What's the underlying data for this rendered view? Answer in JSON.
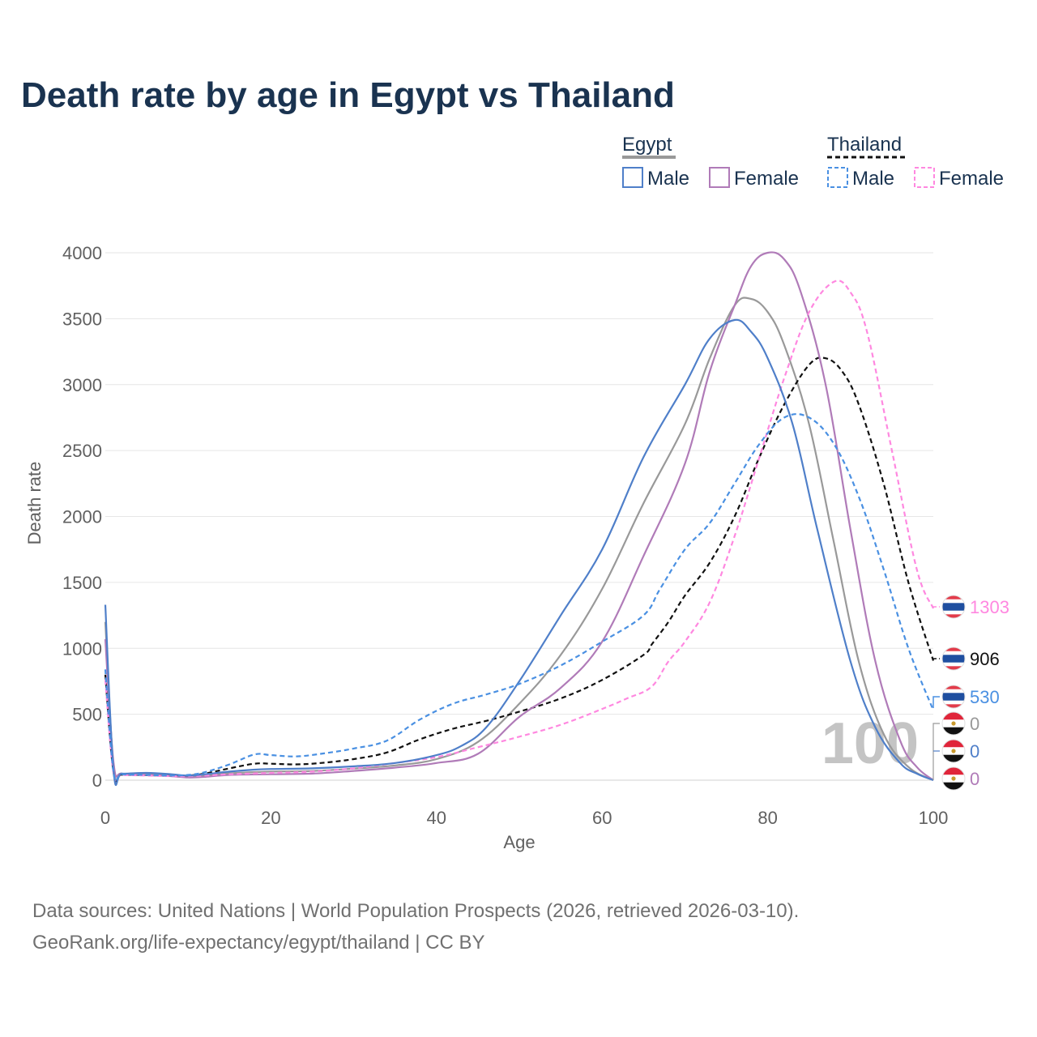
{
  "title": "Death rate by age in Egypt vs Thailand",
  "legend": {
    "groups": [
      {
        "label": "Egypt",
        "line_style": "solid",
        "color": "#999999",
        "items": [
          {
            "label": "Male",
            "color": "#4f7fc9"
          },
          {
            "label": "Female",
            "color": "#b07bb8"
          }
        ]
      },
      {
        "label": "Thailand",
        "line_style": "dashed",
        "color": "#111111",
        "items": [
          {
            "label": "Male",
            "color": "#4a90e2"
          },
          {
            "label": "Female",
            "color": "#ff88e0"
          }
        ]
      }
    ]
  },
  "source": {
    "line1": "Data sources: United Nations | World Population Prospects (2026, retrieved 2026-03-10).",
    "line2": "GeoRank.org/life-expectancy/egypt/thailand | CC BY"
  },
  "watermark": "100",
  "chart_data": {
    "type": "line",
    "title": "Death rate by age in Egypt vs Thailand",
    "xlabel": "Age",
    "ylabel": "Death rate",
    "xlim": [
      0,
      100
    ],
    "ylim": [
      0,
      4000
    ],
    "xticks": [
      0,
      20,
      40,
      60,
      80,
      100
    ],
    "yticks": [
      0,
      500,
      1000,
      1500,
      2000,
      2500,
      3000,
      3500,
      4000
    ],
    "grid": true,
    "series": [
      {
        "name": "Egypt Male",
        "country": "Egypt",
        "sex": "Male",
        "color": "#4f7fc9",
        "dash": "solid",
        "end_label": "0",
        "x": [
          0,
          1,
          2,
          5,
          8,
          10,
          12,
          15,
          18,
          20,
          25,
          30,
          35,
          40,
          43,
          46,
          50,
          55,
          60,
          65,
          70,
          73,
          76,
          78,
          80,
          83,
          86,
          90,
          93,
          96,
          98,
          100
        ],
        "y": [
          1330,
          70,
          50,
          55,
          45,
          35,
          45,
          65,
          80,
          85,
          90,
          105,
          130,
          190,
          260,
          400,
          750,
          1250,
          1750,
          2450,
          3000,
          3350,
          3490,
          3400,
          3200,
          2700,
          1900,
          900,
          400,
          130,
          50,
          0
        ]
      },
      {
        "name": "Egypt Female",
        "country": "Egypt",
        "sex": "Female",
        "color": "#b07bb8",
        "dash": "solid",
        "end_label": "0",
        "x": [
          0,
          1,
          2,
          5,
          8,
          10,
          12,
          15,
          20,
          25,
          30,
          35,
          40,
          45,
          50,
          55,
          60,
          65,
          70,
          73,
          76,
          78,
          80,
          82,
          84,
          87,
          90,
          93,
          96,
          98,
          100
        ],
        "y": [
          1070,
          130,
          50,
          40,
          30,
          20,
          25,
          40,
          45,
          50,
          70,
          95,
          130,
          200,
          480,
          700,
          1050,
          1700,
          2400,
          3100,
          3600,
          3900,
          4000,
          3950,
          3700,
          3000,
          1900,
          900,
          300,
          100,
          0
        ]
      },
      {
        "name": "Egypt Total",
        "country": "Egypt",
        "sex": "Total",
        "color": "#999999",
        "dash": "solid",
        "end_label": "0",
        "x": [
          0,
          1,
          2,
          5,
          8,
          10,
          12,
          15,
          20,
          25,
          30,
          35,
          40,
          45,
          50,
          55,
          60,
          65,
          70,
          73,
          76,
          78,
          80,
          82,
          85,
          88,
          91,
          94,
          97,
          100
        ],
        "y": [
          1200,
          100,
          50,
          48,
          38,
          28,
          35,
          52,
          65,
          70,
          88,
          112,
          160,
          290,
          580,
          950,
          1450,
          2100,
          2700,
          3200,
          3600,
          3650,
          3550,
          3300,
          2700,
          1800,
          900,
          350,
          100,
          0
        ]
      },
      {
        "name": "Thailand Male",
        "country": "Thailand",
        "sex": "Male",
        "color": "#4a90e2",
        "dash": "dashed",
        "end_label": "530",
        "x": [
          0,
          1,
          2,
          5,
          8,
          10,
          12,
          15,
          18,
          20,
          23,
          26,
          30,
          34,
          38,
          42,
          46,
          50,
          55,
          60,
          65,
          67,
          70,
          73,
          76,
          79,
          82,
          85,
          88,
          91,
          94,
          97,
          100
        ],
        "y": [
          840,
          60,
          45,
          40,
          35,
          40,
          60,
          120,
          195,
          190,
          180,
          200,
          240,
          300,
          460,
          580,
          650,
          730,
          870,
          1050,
          1250,
          1450,
          1750,
          1950,
          2250,
          2550,
          2750,
          2750,
          2550,
          2150,
          1600,
          1000,
          530
        ]
      },
      {
        "name": "Thailand Female",
        "country": "Thailand",
        "sex": "Female",
        "color": "#ff88e0",
        "dash": "dashed",
        "end_label": "1303",
        "x": [
          0,
          1,
          2,
          5,
          8,
          10,
          12,
          15,
          20,
          25,
          30,
          35,
          40,
          45,
          50,
          55,
          60,
          63,
          66,
          68,
          70,
          73,
          76,
          79,
          82,
          85,
          88,
          90,
          92,
          95,
          98,
          100
        ],
        "y": [
          760,
          50,
          40,
          35,
          30,
          30,
          35,
          45,
          55,
          65,
          90,
          130,
          175,
          250,
          330,
          420,
          540,
          620,
          710,
          900,
          1050,
          1350,
          1850,
          2450,
          3050,
          3550,
          3780,
          3700,
          3400,
          2500,
          1600,
          1303
        ]
      },
      {
        "name": "Thailand Total",
        "country": "Thailand",
        "sex": "Total",
        "color": "#111111",
        "dash": "dashed",
        "end_label": "906",
        "x": [
          0,
          1,
          2,
          5,
          8,
          10,
          12,
          15,
          18,
          20,
          23,
          26,
          30,
          34,
          38,
          42,
          46,
          50,
          55,
          60,
          65,
          66,
          68,
          70,
          73,
          76,
          79,
          82,
          85,
          87,
          89,
          91,
          94,
          97,
          100
        ],
        "y": [
          800,
          55,
          42,
          38,
          32,
          35,
          50,
          90,
          125,
          125,
          120,
          130,
          160,
          210,
          310,
          390,
          450,
          520,
          620,
          760,
          950,
          1030,
          1200,
          1400,
          1650,
          2000,
          2450,
          2850,
          3150,
          3200,
          3100,
          2850,
          2250,
          1500,
          906
        ]
      }
    ]
  }
}
